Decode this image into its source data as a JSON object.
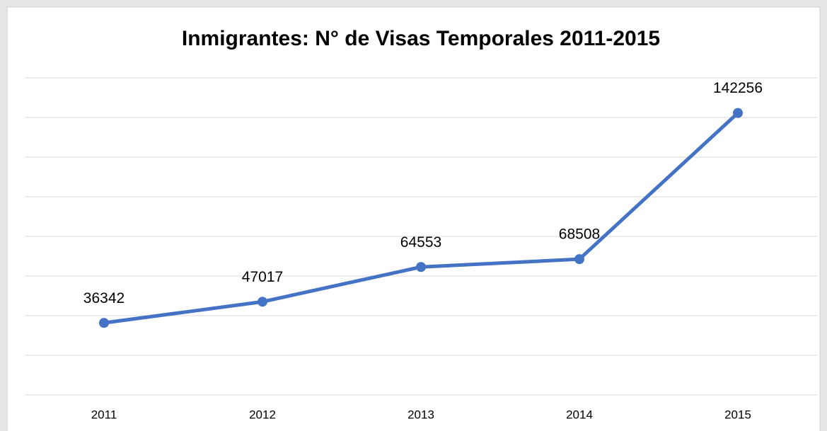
{
  "chart_data": {
    "type": "line",
    "title": "Inmigrantes: N° de Visas Temporales 2011-2015",
    "categories": [
      "2011",
      "2012",
      "2013",
      "2014",
      "2015"
    ],
    "values": [
      36342,
      47017,
      64553,
      68508,
      142256
    ],
    "color": "#4472c4",
    "ylim": [
      0,
      160000
    ],
    "yticks": [
      0,
      20000,
      40000,
      60000,
      80000,
      100000,
      120000,
      140000,
      160000
    ],
    "grid": true
  }
}
